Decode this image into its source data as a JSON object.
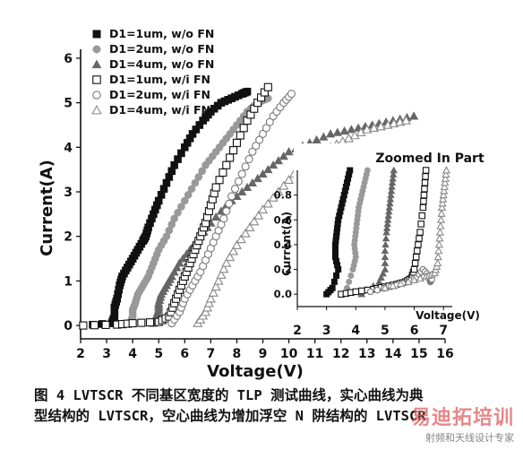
{
  "chart_data": {
    "type": "scatter",
    "title": "",
    "xlabel": "Voltage(V)",
    "ylabel": "Current(A)",
    "xlim": [
      2,
      16
    ],
    "ylim": [
      -0.3,
      6.2
    ],
    "xticks": [
      2,
      3,
      4,
      5,
      6,
      7,
      8,
      9,
      10,
      11,
      12,
      13,
      14,
      15,
      16
    ],
    "yticks": [
      0,
      1,
      2,
      3,
      4,
      5,
      6
    ],
    "legend_position": "top-left",
    "series": [
      {
        "name": "D1=1um, w/o FN",
        "marker": "square-filled",
        "color": "#111111",
        "x": [
          2.1,
          3.2,
          3.3,
          3.3,
          3.4,
          3.5,
          3.6,
          3.8,
          4.0,
          4.2,
          4.4,
          4.5,
          4.6,
          4.8,
          5.0,
          5.3,
          5.6,
          6.0,
          6.3,
          6.7,
          7.0,
          7.4,
          7.8,
          8.2,
          8.4
        ],
        "y": [
          0.0,
          0.05,
          0.2,
          0.4,
          0.6,
          0.9,
          1.1,
          1.3,
          1.5,
          1.7,
          1.9,
          2.0,
          2.2,
          2.5,
          2.8,
          3.2,
          3.6,
          4.0,
          4.3,
          4.6,
          4.8,
          5.0,
          5.1,
          5.2,
          5.25
        ]
      },
      {
        "name": "D1=2um, w/o FN",
        "marker": "circle-filled",
        "color": "#999999",
        "x": [
          3.9,
          4.0,
          4.0,
          4.1,
          4.2,
          4.4,
          4.6,
          4.8,
          5.0,
          5.3,
          5.6,
          6.0,
          6.4,
          6.8,
          7.2,
          7.6,
          8.0,
          8.4,
          8.8,
          9.2
        ],
        "y": [
          0.05,
          0.2,
          0.35,
          0.5,
          0.7,
          0.9,
          1.1,
          1.4,
          1.7,
          2.0,
          2.4,
          2.8,
          3.2,
          3.6,
          3.9,
          4.2,
          4.5,
          4.8,
          5.0,
          5.1
        ]
      },
      {
        "name": "D1=4um, w/o FN",
        "marker": "triangle-filled",
        "color": "#666666",
        "x": [
          4.8,
          4.9,
          5.0,
          5.0,
          5.1,
          5.3,
          5.5,
          5.8,
          6.2,
          6.6,
          7.0,
          7.6,
          8.2,
          8.8,
          9.4,
          10.0,
          10.8,
          11.6,
          12.4,
          13.2,
          14.0,
          14.8
        ],
        "y": [
          0.05,
          0.2,
          0.35,
          0.5,
          0.7,
          0.9,
          1.1,
          1.4,
          1.7,
          2.0,
          2.3,
          2.7,
          3.0,
          3.3,
          3.6,
          3.9,
          4.1,
          4.3,
          4.4,
          4.5,
          4.6,
          4.7
        ]
      },
      {
        "name": "D1=1um, w/i FN",
        "marker": "square-open",
        "color": "#111111",
        "x": [
          2.1,
          3.4,
          4.0,
          5.0,
          5.4,
          5.6,
          5.8,
          6.0,
          6.2,
          6.4,
          6.6,
          6.8,
          7.0,
          7.2,
          7.6,
          8.0,
          8.4,
          8.8,
          9.2
        ],
        "y": [
          0.0,
          0.02,
          0.05,
          0.08,
          0.2,
          0.5,
          0.8,
          1.1,
          1.4,
          1.7,
          2.0,
          2.3,
          2.7,
          3.1,
          3.6,
          4.1,
          4.6,
          5.0,
          5.35
        ]
      },
      {
        "name": "D1=2um, w/i FN",
        "marker": "circle-open",
        "color": "#777777",
        "x": [
          5.5,
          5.8,
          6.0,
          6.3,
          6.6,
          6.9,
          7.2,
          7.5,
          7.8,
          8.2,
          8.6,
          9.0,
          9.4,
          9.8,
          10.1
        ],
        "y": [
          0.05,
          0.3,
          0.6,
          0.9,
          1.2,
          1.6,
          2.0,
          2.4,
          2.9,
          3.4,
          3.9,
          4.3,
          4.7,
          5.0,
          5.2
        ]
      },
      {
        "name": "D1=4um, w/i FN",
        "marker": "triangle-open",
        "color": "#888888",
        "x": [
          6.5,
          6.8,
          7.0,
          7.3,
          7.6,
          8.0,
          8.5,
          9.0,
          9.6,
          10.2,
          10.9,
          11.6,
          12.3,
          13.0,
          13.8,
          14.5
        ],
        "y": [
          0.05,
          0.3,
          0.6,
          1.0,
          1.4,
          1.8,
          2.2,
          2.6,
          3.0,
          3.4,
          3.7,
          4.0,
          4.2,
          4.4,
          4.5,
          4.6
        ]
      }
    ],
    "inset": {
      "title": "Zoomed In Part",
      "xlabel": "Voltage(V)",
      "ylabel": "Current(A)",
      "xlim": [
        2,
        7.3
      ],
      "ylim": [
        -0.1,
        1.0
      ],
      "xticks": [
        2,
        3,
        4,
        5,
        6,
        7
      ],
      "yticks": [
        0.0,
        0.2,
        0.4,
        0.6,
        0.8
      ],
      "series": [
        {
          "name": "D1=1um, w/o FN",
          "x": [
            3.0,
            3.2,
            3.4,
            3.3,
            3.3,
            3.35,
            3.4,
            3.5,
            3.6,
            3.7,
            3.8
          ],
          "y": [
            0.0,
            0.05,
            0.2,
            0.3,
            0.4,
            0.5,
            0.6,
            0.7,
            0.8,
            0.9,
            1.0
          ]
        },
        {
          "name": "D1=2um, w/o FN",
          "x": [
            3.7,
            3.9,
            4.0,
            3.95,
            4.0,
            4.05,
            4.1,
            4.2,
            4.3,
            4.4
          ],
          "y": [
            0.05,
            0.2,
            0.3,
            0.4,
            0.5,
            0.6,
            0.7,
            0.8,
            0.9,
            1.0
          ]
        },
        {
          "name": "D1=4um, w/o FN",
          "x": [
            4.2,
            4.8,
            5.0,
            5.0,
            5.05,
            5.1,
            5.15,
            5.2,
            5.25,
            5.3
          ],
          "y": [
            0.0,
            0.1,
            0.2,
            0.35,
            0.5,
            0.6,
            0.7,
            0.8,
            0.9,
            1.0
          ]
        },
        {
          "name": "D1=1um, w/i FN",
          "x": [
            3.5,
            4.0,
            4.6,
            5.0,
            5.4,
            5.7,
            5.9,
            6.0,
            6.1,
            6.2,
            6.3,
            6.35,
            6.4
          ],
          "y": [
            0.0,
            0.02,
            0.04,
            0.06,
            0.08,
            0.1,
            0.13,
            0.2,
            0.35,
            0.5,
            0.7,
            0.85,
            1.0
          ]
        },
        {
          "name": "D1=2um, w/i FN",
          "x": [
            4.5,
            5.2,
            5.8,
            6.1,
            6.3,
            6.5,
            6.55,
            6.6
          ],
          "y": [
            0.02,
            0.06,
            0.1,
            0.14,
            0.2,
            0.15,
            0.1,
            0.12
          ]
        },
        {
          "name": "D1=4um, w/i FN",
          "x": [
            5.0,
            5.8,
            6.4,
            6.7,
            6.8,
            6.85,
            6.9,
            6.95,
            7.0,
            7.05,
            7.1
          ],
          "y": [
            0.05,
            0.1,
            0.14,
            0.17,
            0.25,
            0.4,
            0.55,
            0.7,
            0.8,
            0.9,
            1.0
          ]
        }
      ]
    }
  },
  "caption": {
    "line1": "图 4 LVTSCR 不同基区宽度的 TLP 测试曲线，实心曲线为典",
    "line2": "型结构的 LVTSCR，空心曲线为增加浮空 N 阱结构的 LVTSCR"
  },
  "watermark": {
    "logo": "易迪拓培训",
    "subtitle": "射频和天线设计专家"
  }
}
